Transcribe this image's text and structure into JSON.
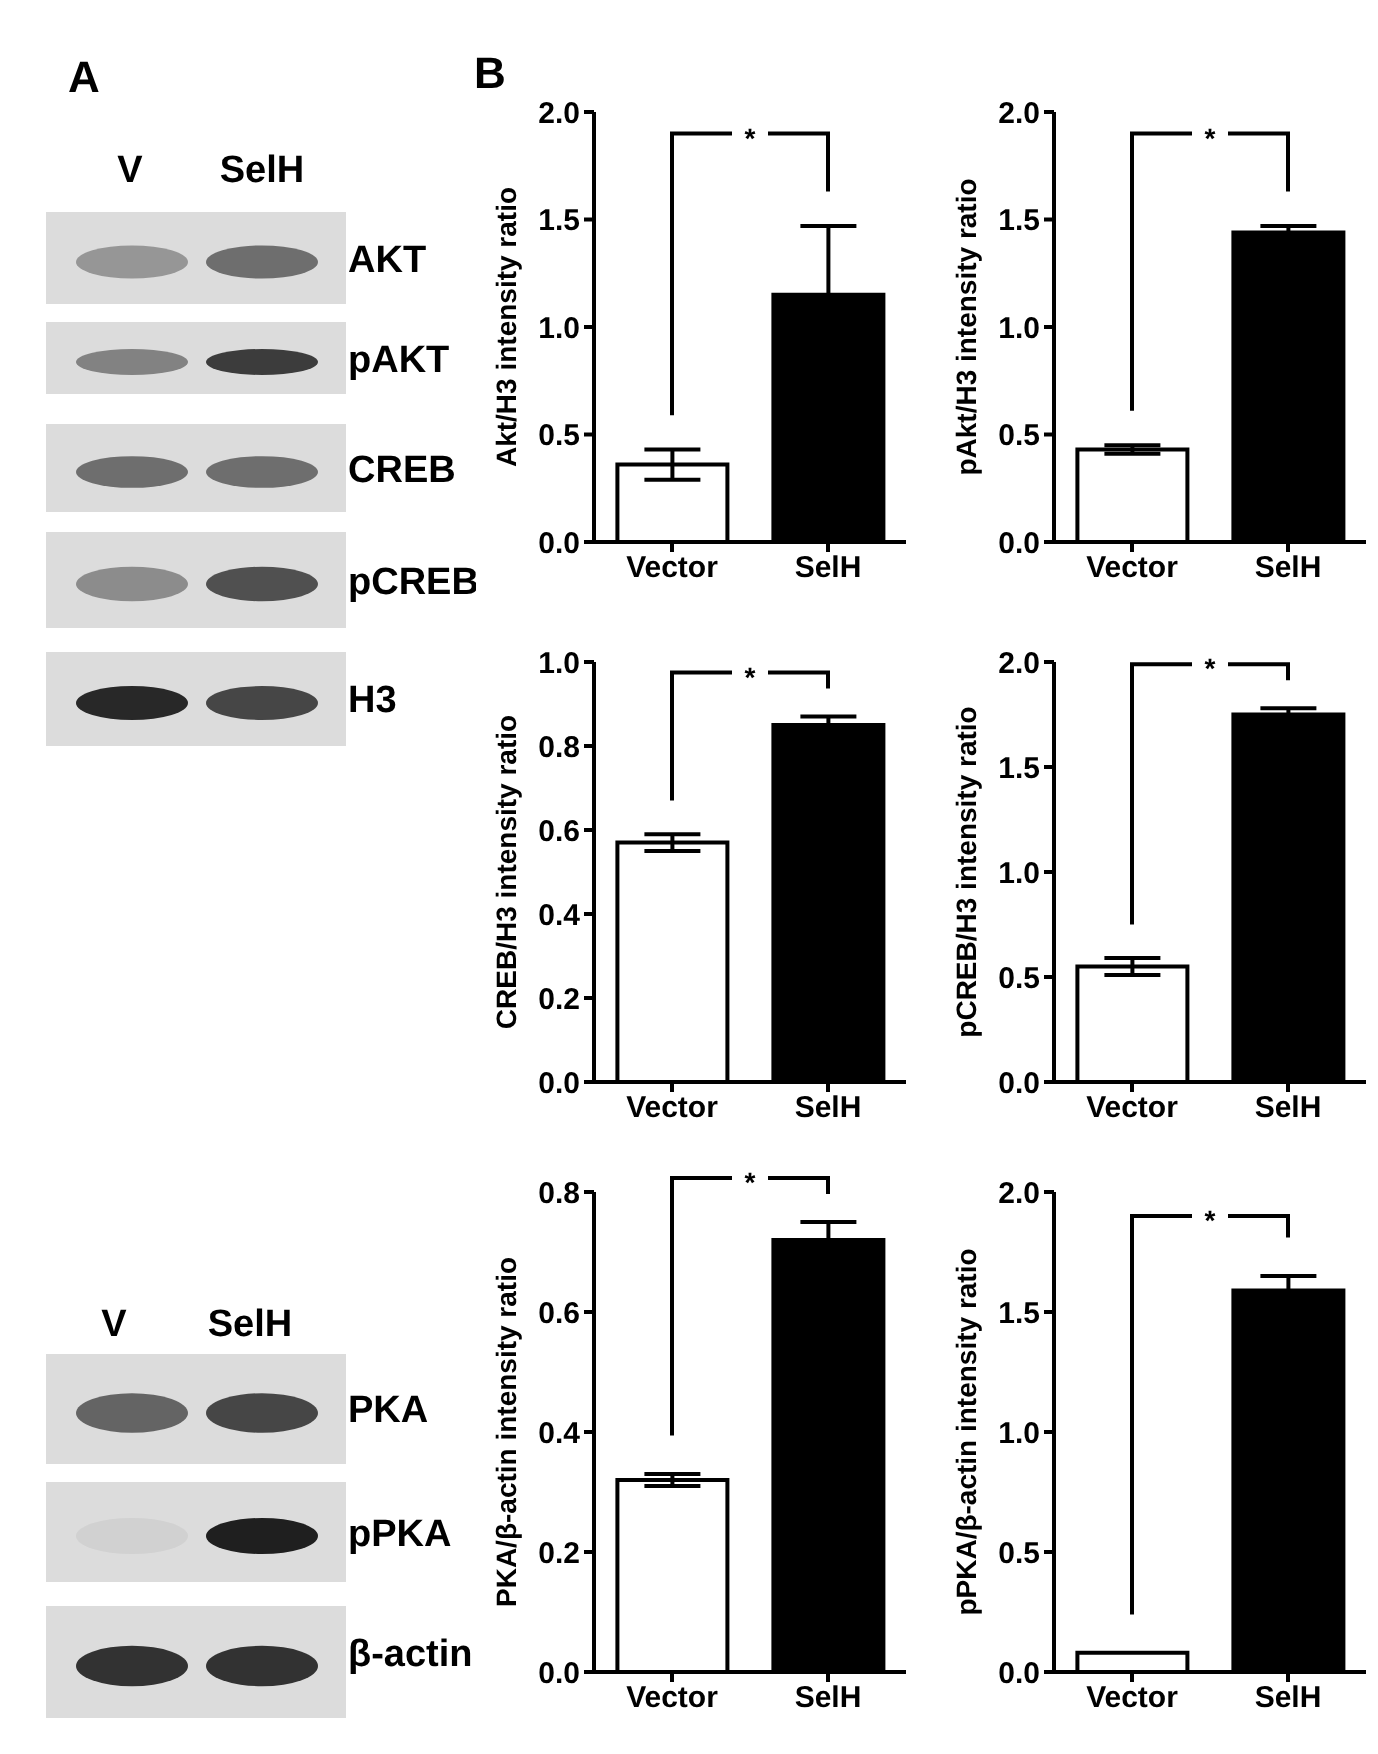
{
  "chart_data": [
    {
      "type": "other",
      "title": "A",
      "annotations": [
        "V",
        "SelH",
        "AKT",
        "pAKT",
        "CREB",
        "pCREB",
        "H3",
        "V",
        "SelH",
        "PKA",
        "pPKA",
        "β-actin"
      ]
    },
    {
      "type": "bar",
      "title": "B",
      "categories": [
        "Vector",
        "SelH"
      ],
      "values": [
        0.36,
        1.15
      ],
      "errors": [
        0.07,
        0.32
      ],
      "colors": [
        "#ffffff",
        "#000000"
      ],
      "ylabel": "Akt/H3 intensity ratio",
      "ylim": [
        0,
        2
      ],
      "yticks": [
        {
          "value": 0,
          "label": "0.0"
        },
        {
          "value": 0.5,
          "label": "0.5"
        },
        {
          "value": 1,
          "label": "1.0"
        },
        {
          "value": 1.5,
          "label": "1.5"
        },
        {
          "value": 2,
          "label": "2.0"
        }
      ],
      "annotations": [
        "*"
      ]
    },
    {
      "type": "bar",
      "categories": [
        "Vector",
        "SelH"
      ],
      "values": [
        0.43,
        1.44
      ],
      "errors": [
        0.02,
        0.03
      ],
      "colors": [
        "#ffffff",
        "#000000"
      ],
      "ylabel": "pAkt/H3 intensity ratio",
      "ylim": [
        0,
        2
      ],
      "yticks": [
        {
          "value": 0,
          "label": "0.0"
        },
        {
          "value": 0.5,
          "label": "0.5"
        },
        {
          "value": 1,
          "label": "1.0"
        },
        {
          "value": 1.5,
          "label": "1.5"
        },
        {
          "value": 2,
          "label": "2.0"
        }
      ],
      "annotations": [
        "*"
      ]
    },
    {
      "type": "bar",
      "categories": [
        "Vector",
        "SelH"
      ],
      "values": [
        0.57,
        0.85
      ],
      "errors": [
        0.02,
        0.02
      ],
      "colors": [
        "#ffffff",
        "#000000"
      ],
      "ylabel": "CREB/H3 intensity ratio",
      "ylim": [
        0,
        1
      ],
      "yticks": [
        {
          "value": 0,
          "label": "0.0"
        },
        0.2,
        0.4,
        0.6,
        0.8,
        {
          "value": 1,
          "label": "1.0"
        }
      ],
      "annotations": [
        "*"
      ]
    },
    {
      "type": "bar",
      "categories": [
        "Vector",
        "SelH"
      ],
      "values": [
        0.55,
        1.75
      ],
      "errors": [
        0.04,
        0.03
      ],
      "colors": [
        "#ffffff",
        "#000000"
      ],
      "ylabel": "pCREB/H3 intensity ratio",
      "ylim": [
        0,
        2
      ],
      "yticks": [
        {
          "value": 0,
          "label": "0.0"
        },
        {
          "value": 0.5,
          "label": "0.5"
        },
        {
          "value": 1,
          "label": "1.0"
        },
        {
          "value": 1.5,
          "label": "1.5"
        },
        {
          "value": 2,
          "label": "2.0"
        }
      ],
      "annotations": [
        "*"
      ]
    },
    {
      "type": "bar",
      "categories": [
        "Vector",
        "SelH"
      ],
      "values": [
        0.32,
        0.72
      ],
      "errors": [
        0.01,
        0.03
      ],
      "colors": [
        "#ffffff",
        "#000000"
      ],
      "ylabel": "PKA/β-actin intensity ratio",
      "ylim": [
        0,
        0.8
      ],
      "yticks": [
        {
          "value": 0,
          "label": "0.0"
        },
        0.2,
        0.4,
        0.6,
        0.8
      ],
      "annotations": [
        "*"
      ]
    },
    {
      "type": "bar",
      "categories": [
        "Vector",
        "SelH"
      ],
      "values": [
        0.08,
        1.59
      ],
      "errors": [
        null,
        0.06
      ],
      "colors": [
        "#ffffff",
        "#000000"
      ],
      "ylabel": "pPKA/β-actin intensity ratio",
      "ylim": [
        0,
        2
      ],
      "yticks": [
        {
          "value": 0,
          "label": "0.0"
        },
        {
          "value": 0.5,
          "label": "0.5"
        },
        {
          "value": 1,
          "label": "1.0"
        },
        {
          "value": 1.5,
          "label": "1.5"
        },
        {
          "value": 2,
          "label": "2.0"
        }
      ],
      "annotations": [
        "*"
      ]
    }
  ]
}
